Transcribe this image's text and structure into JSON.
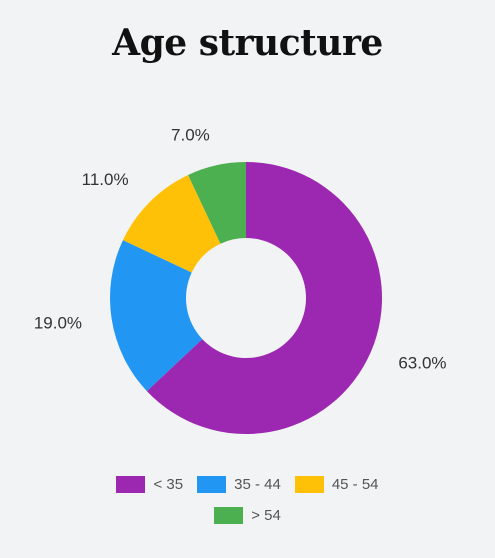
{
  "chart_data": {
    "type": "pie",
    "variant": "donut",
    "title": "Age structure",
    "categories": [
      "< 35",
      "35 - 44",
      "45 - 54",
      "> 54"
    ],
    "values": [
      63.0,
      19.0,
      11.0,
      7.0
    ],
    "value_labels": [
      "63.0%",
      "19.0%",
      "11.0%",
      "7.0%"
    ],
    "colors": [
      "#9c27b0",
      "#2196f3",
      "#ffc107",
      "#4caf50"
    ],
    "legend_placement": "bottom"
  }
}
